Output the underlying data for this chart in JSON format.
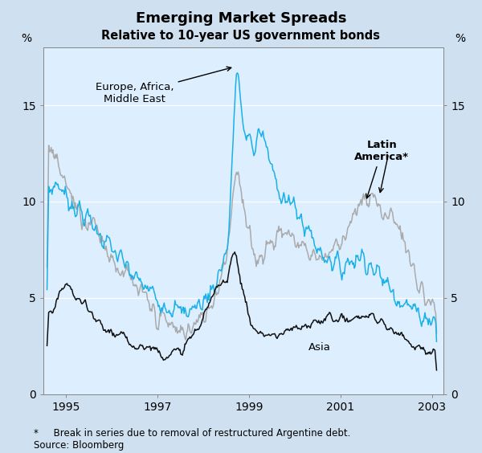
{
  "title": "Emerging Market Spreads",
  "subtitle": "Relative to 10-year US government bonds",
  "ylabel_left": "%",
  "ylabel_right": "%",
  "ylim": [
    0,
    18
  ],
  "yticks": [
    0,
    5,
    10,
    15
  ],
  "xlim_start": 1994.5,
  "xlim_end": 2003.25,
  "xticks": [
    1995,
    1997,
    1999,
    2001,
    2003
  ],
  "background_color": "#cfe0f0",
  "plot_bg_color": "#ddeeff",
  "line_blue_color": "#1ab0e8",
  "line_gray_color": "#aaaaaa",
  "line_black_color": "#111111",
  "footnote1": "*     Break in series due to removal of restructured Argentine debt.",
  "footnote2": "Source: Bloomberg",
  "annotation_eame": "Europe, Africa,\nMiddle East",
  "annotation_latam": "Latin\nAmerica*",
  "annotation_asia": "Asia"
}
